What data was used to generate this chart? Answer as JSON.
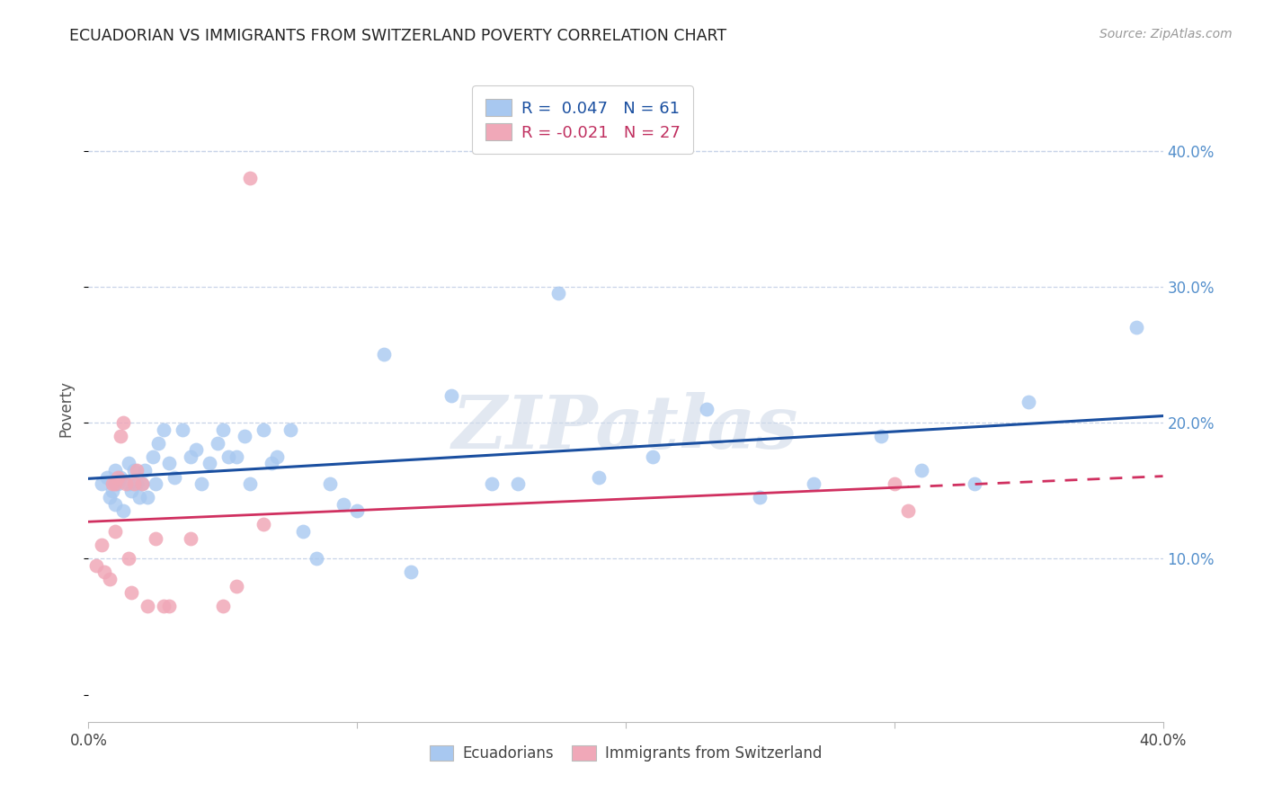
{
  "title": "ECUADORIAN VS IMMIGRANTS FROM SWITZERLAND POVERTY CORRELATION CHART",
  "source": "Source: ZipAtlas.com",
  "ylabel": "Poverty",
  "xlim": [
    0.0,
    0.4
  ],
  "ylim": [
    -0.02,
    0.44
  ],
  "ytick_labels": [
    "10.0%",
    "20.0%",
    "30.0%",
    "40.0%"
  ],
  "ytick_values": [
    0.1,
    0.2,
    0.3,
    0.4
  ],
  "xtick_values": [
    0.0,
    0.1,
    0.2,
    0.3,
    0.4
  ],
  "xtick_labels_show": [
    "0.0%",
    "",
    "",
    "",
    "40.0%"
  ],
  "legend_label1": "Ecuadorians",
  "legend_label2": "Immigrants from Switzerland",
  "R1": 0.047,
  "N1": 61,
  "R2": -0.021,
  "N2": 27,
  "blue_color": "#a8c8f0",
  "pink_color": "#f0a8b8",
  "line_blue": "#1a4fa0",
  "line_pink": "#d03060",
  "blue_x": [
    0.005,
    0.007,
    0.008,
    0.009,
    0.01,
    0.01,
    0.01,
    0.011,
    0.012,
    0.013,
    0.015,
    0.015,
    0.016,
    0.017,
    0.018,
    0.019,
    0.02,
    0.021,
    0.022,
    0.024,
    0.025,
    0.026,
    0.028,
    0.03,
    0.032,
    0.035,
    0.038,
    0.04,
    0.042,
    0.045,
    0.048,
    0.05,
    0.052,
    0.055,
    0.058,
    0.06,
    0.065,
    0.068,
    0.07,
    0.075,
    0.08,
    0.085,
    0.09,
    0.095,
    0.1,
    0.11,
    0.12,
    0.135,
    0.15,
    0.16,
    0.175,
    0.19,
    0.21,
    0.23,
    0.25,
    0.27,
    0.295,
    0.31,
    0.33,
    0.35,
    0.39
  ],
  "blue_y": [
    0.155,
    0.16,
    0.145,
    0.15,
    0.155,
    0.165,
    0.14,
    0.155,
    0.16,
    0.135,
    0.155,
    0.17,
    0.15,
    0.165,
    0.155,
    0.145,
    0.155,
    0.165,
    0.145,
    0.175,
    0.155,
    0.185,
    0.195,
    0.17,
    0.16,
    0.195,
    0.175,
    0.18,
    0.155,
    0.17,
    0.185,
    0.195,
    0.175,
    0.175,
    0.19,
    0.155,
    0.195,
    0.17,
    0.175,
    0.195,
    0.12,
    0.1,
    0.155,
    0.14,
    0.135,
    0.25,
    0.09,
    0.22,
    0.155,
    0.155,
    0.295,
    0.16,
    0.175,
    0.21,
    0.145,
    0.155,
    0.19,
    0.165,
    0.155,
    0.215,
    0.27
  ],
  "pink_x": [
    0.003,
    0.005,
    0.006,
    0.008,
    0.009,
    0.01,
    0.01,
    0.011,
    0.012,
    0.013,
    0.014,
    0.015,
    0.016,
    0.017,
    0.018,
    0.02,
    0.022,
    0.025,
    0.028,
    0.03,
    0.038,
    0.05,
    0.055,
    0.06,
    0.065,
    0.3,
    0.305
  ],
  "pink_y": [
    0.095,
    0.11,
    0.09,
    0.085,
    0.155,
    0.12,
    0.155,
    0.16,
    0.19,
    0.2,
    0.155,
    0.1,
    0.075,
    0.155,
    0.165,
    0.155,
    0.065,
    0.115,
    0.065,
    0.065,
    0.115,
    0.065,
    0.08,
    0.38,
    0.125,
    0.155,
    0.135
  ],
  "watermark_text": "ZIPatlas",
  "background_color": "#ffffff",
  "grid_color": "#c8d4e8",
  "top_grid_color": "#c8d4e8"
}
